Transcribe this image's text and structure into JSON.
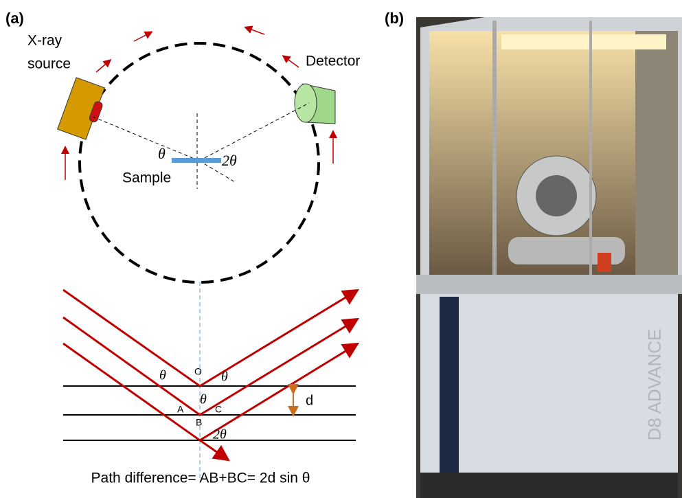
{
  "panel_a": {
    "label": "(a)",
    "source_label": [
      "X-ray",
      "source"
    ],
    "detector_label": "Detector",
    "sample_label": "Sample",
    "theta_sample": "θ",
    "two_theta_sample": "2θ",
    "bragg": {
      "theta_left": "θ",
      "theta_right": "θ",
      "theta_mid": "θ",
      "point_o": "O",
      "point_a": "A",
      "point_b": "B",
      "point_c": "C",
      "spacing": "d",
      "two_theta": "2θ"
    },
    "formula": "Path difference= AB+BC= 2d sin θ"
  },
  "panel_b": {
    "label": "(b)",
    "instrument_text": "D8 ADVANCE"
  }
}
